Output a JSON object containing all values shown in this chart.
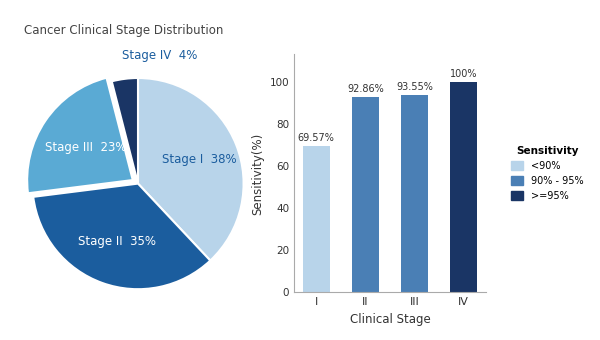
{
  "pie_title": "Cancer Clinical Stage Distribution",
  "pie_labels": [
    "Stage I",
    "Stage II",
    "Stage III",
    "Stage IV"
  ],
  "pie_values": [
    38,
    35,
    23,
    4
  ],
  "pie_colors": [
    "#b8d4ea",
    "#1b5d9e",
    "#5aaad4",
    "#1a3565"
  ],
  "pie_explode": [
    0,
    0,
    0.06,
    0
  ],
  "pie_label_colors_in": [
    "#1b5d9e",
    "#ffffff",
    "#ffffff"
  ],
  "pie_label_color_iv": "#1b5d9e",
  "pie_label_fontsize": 8.5,
  "bar_categories": [
    "I",
    "II",
    "III",
    "IV"
  ],
  "bar_values": [
    69.57,
    92.86,
    93.55,
    100
  ],
  "bar_colors": [
    "#b8d4ea",
    "#4a7fb5",
    "#4a7fb5",
    "#1a3565"
  ],
  "bar_xlabel": "Clinical Stage",
  "bar_ylabel": "Sensitivity(%)",
  "bar_yticks": [
    0,
    20,
    40,
    60,
    80,
    100
  ],
  "bar_annotations": [
    "69.57%",
    "92.86%",
    "93.55%",
    "100%"
  ],
  "legend_title": "Sensitivity",
  "legend_labels": [
    "<90%",
    "90% - 95%",
    ">=95%"
  ],
  "legend_colors": [
    "#b8d4ea",
    "#4a7fb5",
    "#1a3565"
  ],
  "background_color": "#ffffff"
}
